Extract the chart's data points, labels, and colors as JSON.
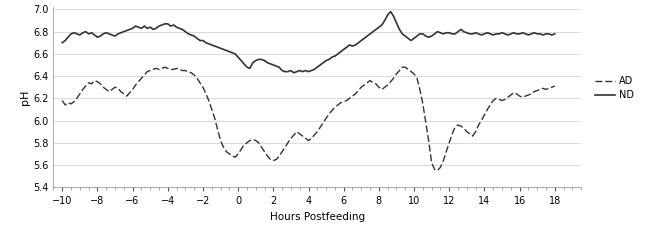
{
  "title": "",
  "xlabel": "Hours Postfeeding",
  "ylabel": "pH",
  "xlim": [
    -10.5,
    19.5
  ],
  "ylim": [
    5.4,
    7.02
  ],
  "xticks": [
    -10,
    -8,
    -6,
    -4,
    -2,
    0,
    2,
    4,
    6,
    8,
    10,
    12,
    14,
    16,
    18
  ],
  "yticks": [
    5.4,
    5.6,
    5.8,
    6.0,
    6.2,
    6.4,
    6.6,
    6.8,
    7.0
  ],
  "line_color": "#333333",
  "background_color": "#ffffff",
  "ND_x": [
    -10.0,
    -9.83,
    -9.67,
    -9.5,
    -9.33,
    -9.17,
    -9.0,
    -8.83,
    -8.67,
    -8.5,
    -8.33,
    -8.17,
    -8.0,
    -7.83,
    -7.67,
    -7.5,
    -7.33,
    -7.17,
    -7.0,
    -6.83,
    -6.67,
    -6.5,
    -6.33,
    -6.17,
    -6.0,
    -5.83,
    -5.67,
    -5.5,
    -5.33,
    -5.17,
    -5.0,
    -4.83,
    -4.67,
    -4.5,
    -4.33,
    -4.17,
    -4.0,
    -3.83,
    -3.67,
    -3.5,
    -3.33,
    -3.17,
    -3.0,
    -2.83,
    -2.67,
    -2.5,
    -2.33,
    -2.17,
    -2.0,
    -1.83,
    -1.67,
    -1.5,
    -1.33,
    -1.17,
    -1.0,
    -0.83,
    -0.67,
    -0.5,
    -0.33,
    -0.17,
    0.0,
    0.17,
    0.33,
    0.5,
    0.67,
    0.83,
    1.0,
    1.17,
    1.33,
    1.5,
    1.67,
    1.83,
    2.0,
    2.17,
    2.33,
    2.5,
    2.67,
    2.83,
    3.0,
    3.17,
    3.33,
    3.5,
    3.67,
    3.83,
    4.0,
    4.17,
    4.33,
    4.5,
    4.67,
    4.83,
    5.0,
    5.17,
    5.33,
    5.5,
    5.67,
    5.83,
    6.0,
    6.17,
    6.33,
    6.5,
    6.67,
    6.83,
    7.0,
    7.17,
    7.33,
    7.5,
    7.67,
    7.83,
    8.0,
    8.17,
    8.33,
    8.5,
    8.67,
    8.83,
    9.0,
    9.17,
    9.33,
    9.5,
    9.67,
    9.83,
    10.0,
    10.17,
    10.33,
    10.5,
    10.67,
    10.83,
    11.0,
    11.17,
    11.33,
    11.5,
    11.67,
    11.83,
    12.0,
    12.17,
    12.33,
    12.5,
    12.67,
    12.83,
    13.0,
    13.17,
    13.33,
    13.5,
    13.67,
    13.83,
    14.0,
    14.17,
    14.33,
    14.5,
    14.67,
    14.83,
    15.0,
    15.17,
    15.33,
    15.5,
    15.67,
    15.83,
    16.0,
    16.17,
    16.33,
    16.5,
    16.67,
    16.83,
    17.0,
    17.17,
    17.33,
    17.5,
    17.67,
    17.83,
    18.0
  ],
  "ND_y": [
    6.7,
    6.72,
    6.75,
    6.78,
    6.79,
    6.78,
    6.77,
    6.79,
    6.8,
    6.78,
    6.79,
    6.77,
    6.75,
    6.76,
    6.78,
    6.79,
    6.78,
    6.77,
    6.76,
    6.78,
    6.79,
    6.8,
    6.81,
    6.82,
    6.83,
    6.85,
    6.84,
    6.83,
    6.85,
    6.83,
    6.84,
    6.82,
    6.83,
    6.85,
    6.86,
    6.87,
    6.87,
    6.85,
    6.86,
    6.84,
    6.83,
    6.82,
    6.8,
    6.78,
    6.77,
    6.76,
    6.74,
    6.72,
    6.72,
    6.7,
    6.69,
    6.68,
    6.67,
    6.66,
    6.65,
    6.64,
    6.63,
    6.62,
    6.61,
    6.6,
    6.57,
    6.54,
    6.51,
    6.48,
    6.47,
    6.52,
    6.54,
    6.55,
    6.55,
    6.54,
    6.52,
    6.51,
    6.5,
    6.49,
    6.48,
    6.45,
    6.44,
    6.44,
    6.45,
    6.43,
    6.44,
    6.45,
    6.44,
    6.45,
    6.44,
    6.45,
    6.46,
    6.48,
    6.5,
    6.52,
    6.54,
    6.55,
    6.57,
    6.58,
    6.6,
    6.62,
    6.64,
    6.66,
    6.68,
    6.67,
    6.68,
    6.7,
    6.72,
    6.74,
    6.76,
    6.78,
    6.8,
    6.82,
    6.84,
    6.86,
    6.9,
    6.95,
    6.98,
    6.94,
    6.88,
    6.82,
    6.78,
    6.76,
    6.74,
    6.72,
    6.74,
    6.76,
    6.78,
    6.78,
    6.76,
    6.75,
    6.76,
    6.78,
    6.8,
    6.79,
    6.78,
    6.79,
    6.79,
    6.78,
    6.78,
    6.8,
    6.82,
    6.8,
    6.79,
    6.78,
    6.78,
    6.79,
    6.78,
    6.77,
    6.78,
    6.79,
    6.78,
    6.77,
    6.78,
    6.78,
    6.79,
    6.78,
    6.77,
    6.78,
    6.79,
    6.78,
    6.78,
    6.79,
    6.78,
    6.77,
    6.78,
    6.79,
    6.78,
    6.78,
    6.77,
    6.78,
    6.78,
    6.77,
    6.78
  ],
  "AD_x": [
    -10.0,
    -9.83,
    -9.67,
    -9.5,
    -9.33,
    -9.17,
    -9.0,
    -8.83,
    -8.67,
    -8.5,
    -8.33,
    -8.17,
    -8.0,
    -7.83,
    -7.67,
    -7.5,
    -7.33,
    -7.17,
    -7.0,
    -6.83,
    -6.67,
    -6.5,
    -6.33,
    -6.17,
    -6.0,
    -5.83,
    -5.67,
    -5.5,
    -5.33,
    -5.17,
    -5.0,
    -4.83,
    -4.67,
    -4.5,
    -4.33,
    -4.17,
    -4.0,
    -3.83,
    -3.67,
    -3.5,
    -3.33,
    -3.17,
    -3.0,
    -2.83,
    -2.67,
    -2.5,
    -2.33,
    -2.17,
    -2.0,
    -1.83,
    -1.67,
    -1.5,
    -1.33,
    -1.17,
    -1.0,
    -0.83,
    -0.67,
    -0.5,
    -0.33,
    -0.17,
    0.0,
    0.17,
    0.33,
    0.5,
    0.67,
    0.83,
    1.0,
    1.17,
    1.33,
    1.5,
    1.67,
    1.83,
    2.0,
    2.17,
    2.33,
    2.5,
    2.67,
    2.83,
    3.0,
    3.17,
    3.33,
    3.5,
    3.67,
    3.83,
    4.0,
    4.17,
    4.33,
    4.5,
    4.67,
    4.83,
    5.0,
    5.17,
    5.33,
    5.5,
    5.67,
    5.83,
    6.0,
    6.17,
    6.33,
    6.5,
    6.67,
    6.83,
    7.0,
    7.17,
    7.33,
    7.5,
    7.67,
    7.83,
    8.0,
    8.17,
    8.33,
    8.5,
    8.67,
    8.83,
    9.0,
    9.17,
    9.33,
    9.5,
    9.67,
    9.83,
    10.0,
    10.17,
    10.33,
    10.5,
    10.67,
    10.83,
    11.0,
    11.17,
    11.33,
    11.5,
    11.67,
    11.83,
    12.0,
    12.17,
    12.33,
    12.5,
    12.67,
    12.83,
    13.0,
    13.17,
    13.33,
    13.5,
    13.67,
    13.83,
    14.0,
    14.17,
    14.33,
    14.5,
    14.67,
    14.83,
    15.0,
    15.17,
    15.33,
    15.5,
    15.67,
    15.83,
    16.0,
    16.17,
    16.33,
    16.5,
    16.67,
    16.83,
    17.0,
    17.17,
    17.33,
    17.5,
    17.67,
    17.83,
    18.0
  ],
  "AD_y": [
    6.18,
    6.14,
    6.16,
    6.15,
    6.17,
    6.2,
    6.24,
    6.28,
    6.31,
    6.34,
    6.33,
    6.36,
    6.35,
    6.33,
    6.3,
    6.28,
    6.26,
    6.28,
    6.3,
    6.29,
    6.26,
    6.24,
    6.22,
    6.25,
    6.28,
    6.32,
    6.35,
    6.38,
    6.41,
    6.44,
    6.45,
    6.46,
    6.47,
    6.46,
    6.47,
    6.48,
    6.47,
    6.46,
    6.46,
    6.47,
    6.46,
    6.45,
    6.45,
    6.44,
    6.43,
    6.41,
    6.38,
    6.34,
    6.3,
    6.24,
    6.18,
    6.1,
    6.02,
    5.92,
    5.82,
    5.76,
    5.72,
    5.7,
    5.68,
    5.67,
    5.7,
    5.74,
    5.78,
    5.8,
    5.82,
    5.83,
    5.82,
    5.8,
    5.76,
    5.72,
    5.68,
    5.65,
    5.64,
    5.65,
    5.68,
    5.72,
    5.76,
    5.8,
    5.84,
    5.87,
    5.9,
    5.88,
    5.86,
    5.84,
    5.82,
    5.84,
    5.87,
    5.9,
    5.94,
    5.98,
    6.02,
    6.06,
    6.09,
    6.12,
    6.14,
    6.16,
    6.17,
    6.18,
    6.2,
    6.22,
    6.24,
    6.27,
    6.3,
    6.32,
    6.34,
    6.36,
    6.34,
    6.33,
    6.3,
    6.28,
    6.3,
    6.32,
    6.35,
    6.38,
    6.42,
    6.45,
    6.48,
    6.48,
    6.46,
    6.44,
    6.42,
    6.38,
    6.28,
    6.15,
    5.98,
    5.82,
    5.62,
    5.56,
    5.55,
    5.58,
    5.64,
    5.72,
    5.8,
    5.88,
    5.94,
    5.96,
    5.95,
    5.93,
    5.9,
    5.88,
    5.86,
    5.9,
    5.96,
    6.0,
    6.05,
    6.1,
    6.14,
    6.18,
    6.2,
    6.19,
    6.18,
    6.19,
    6.21,
    6.23,
    6.25,
    6.24,
    6.22,
    6.21,
    6.22,
    6.23,
    6.24,
    6.26,
    6.27,
    6.28,
    6.29,
    6.28,
    6.29,
    6.3,
    6.31
  ]
}
